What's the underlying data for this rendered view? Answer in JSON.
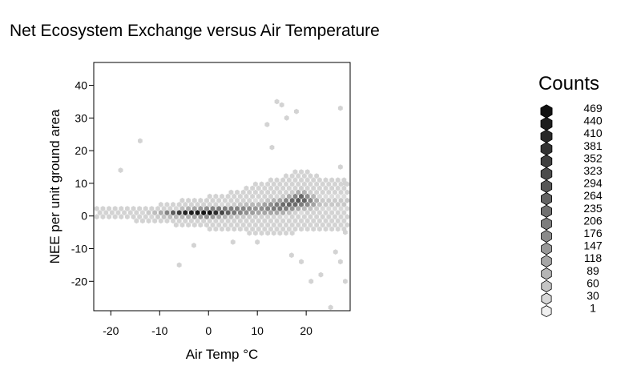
{
  "chart_data": {
    "type": "heatmap",
    "subtype": "hexbin",
    "title": "Net Ecosystem Exchange versus Air Temperature",
    "xlabel": "Air Temp °C",
    "ylabel": "NEE per unit ground area",
    "xlim": [
      -23.5,
      29
    ],
    "ylim": [
      -29,
      47
    ],
    "xticks": [
      -20,
      -10,
      0,
      10,
      20
    ],
    "yticks": [
      -20,
      -10,
      0,
      10,
      20,
      30,
      40
    ],
    "grid": false,
    "legend": {
      "title": "Counts",
      "placement": "right",
      "levels": [
        1,
        30,
        60,
        89,
        118,
        147,
        176,
        206,
        235,
        264,
        294,
        323,
        352,
        381,
        410,
        440,
        469
      ]
    },
    "color_scale": {
      "low": "#f0f0f0",
      "high": "#111111"
    },
    "density_model": {
      "spine_x": [
        -23,
        -15,
        -10,
        -5,
        0,
        5,
        10,
        15,
        19,
        23
      ],
      "spine_y": [
        1,
        0.5,
        0.5,
        1,
        1,
        1.5,
        2,
        3,
        5,
        4
      ],
      "outer_halfwidth": [
        1.5,
        2,
        3,
        4,
        5,
        6,
        8,
        9,
        10,
        8
      ],
      "peak_count": [
        5,
        30,
        150,
        420,
        469,
        250,
        150,
        250,
        300,
        60
      ]
    },
    "outliers": [
      [
        -18,
        14
      ],
      [
        -14,
        23
      ],
      [
        -6,
        -15
      ],
      [
        -3,
        -9
      ],
      [
        5,
        -8
      ],
      [
        10,
        -8
      ],
      [
        12,
        28
      ],
      [
        13,
        21
      ],
      [
        14,
        35
      ],
      [
        15,
        34
      ],
      [
        16,
        30
      ],
      [
        18,
        32
      ],
      [
        17,
        -12
      ],
      [
        19,
        -14
      ],
      [
        21,
        -20
      ],
      [
        23,
        -18
      ],
      [
        25,
        -28
      ],
      [
        27,
        33
      ],
      [
        26,
        -11
      ],
      [
        27,
        -14
      ],
      [
        28,
        -20
      ],
      [
        28,
        -5
      ],
      [
        27,
        15
      ],
      [
        28,
        10
      ]
    ]
  }
}
